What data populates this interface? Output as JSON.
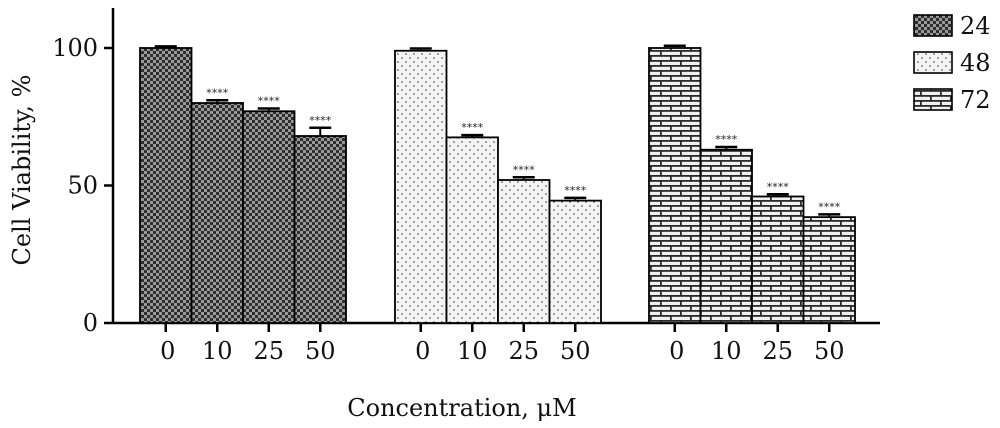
{
  "chart_data": {
    "type": "bar",
    "title": "",
    "xlabel": "Concentration, μM",
    "ylabel": "Cell Viability, %",
    "ylim": [
      0,
      115
    ],
    "yticks": [
      0,
      50,
      100
    ],
    "categories": [
      "0",
      "10",
      "25",
      "50"
    ],
    "series": [
      {
        "name": "24",
        "pattern": "checker",
        "values": [
          100,
          80,
          77,
          68
        ],
        "errors": [
          0.6,
          1.0,
          1.0,
          3.0
        ],
        "significance": [
          "",
          "****",
          "****",
          "****"
        ]
      },
      {
        "name": "48",
        "pattern": "dots",
        "values": [
          99,
          67.5,
          52,
          44.5
        ],
        "errors": [
          0.8,
          0.8,
          1.0,
          1.0
        ],
        "significance": [
          "",
          "****",
          "****",
          "****"
        ]
      },
      {
        "name": "72",
        "pattern": "brick",
        "values": [
          100,
          63,
          46,
          38.5
        ],
        "errors": [
          0.8,
          1.0,
          0.8,
          1.0
        ],
        "significance": [
          "",
          "****",
          "****",
          "****"
        ]
      }
    ],
    "grid": false,
    "legend": "top-right"
  }
}
